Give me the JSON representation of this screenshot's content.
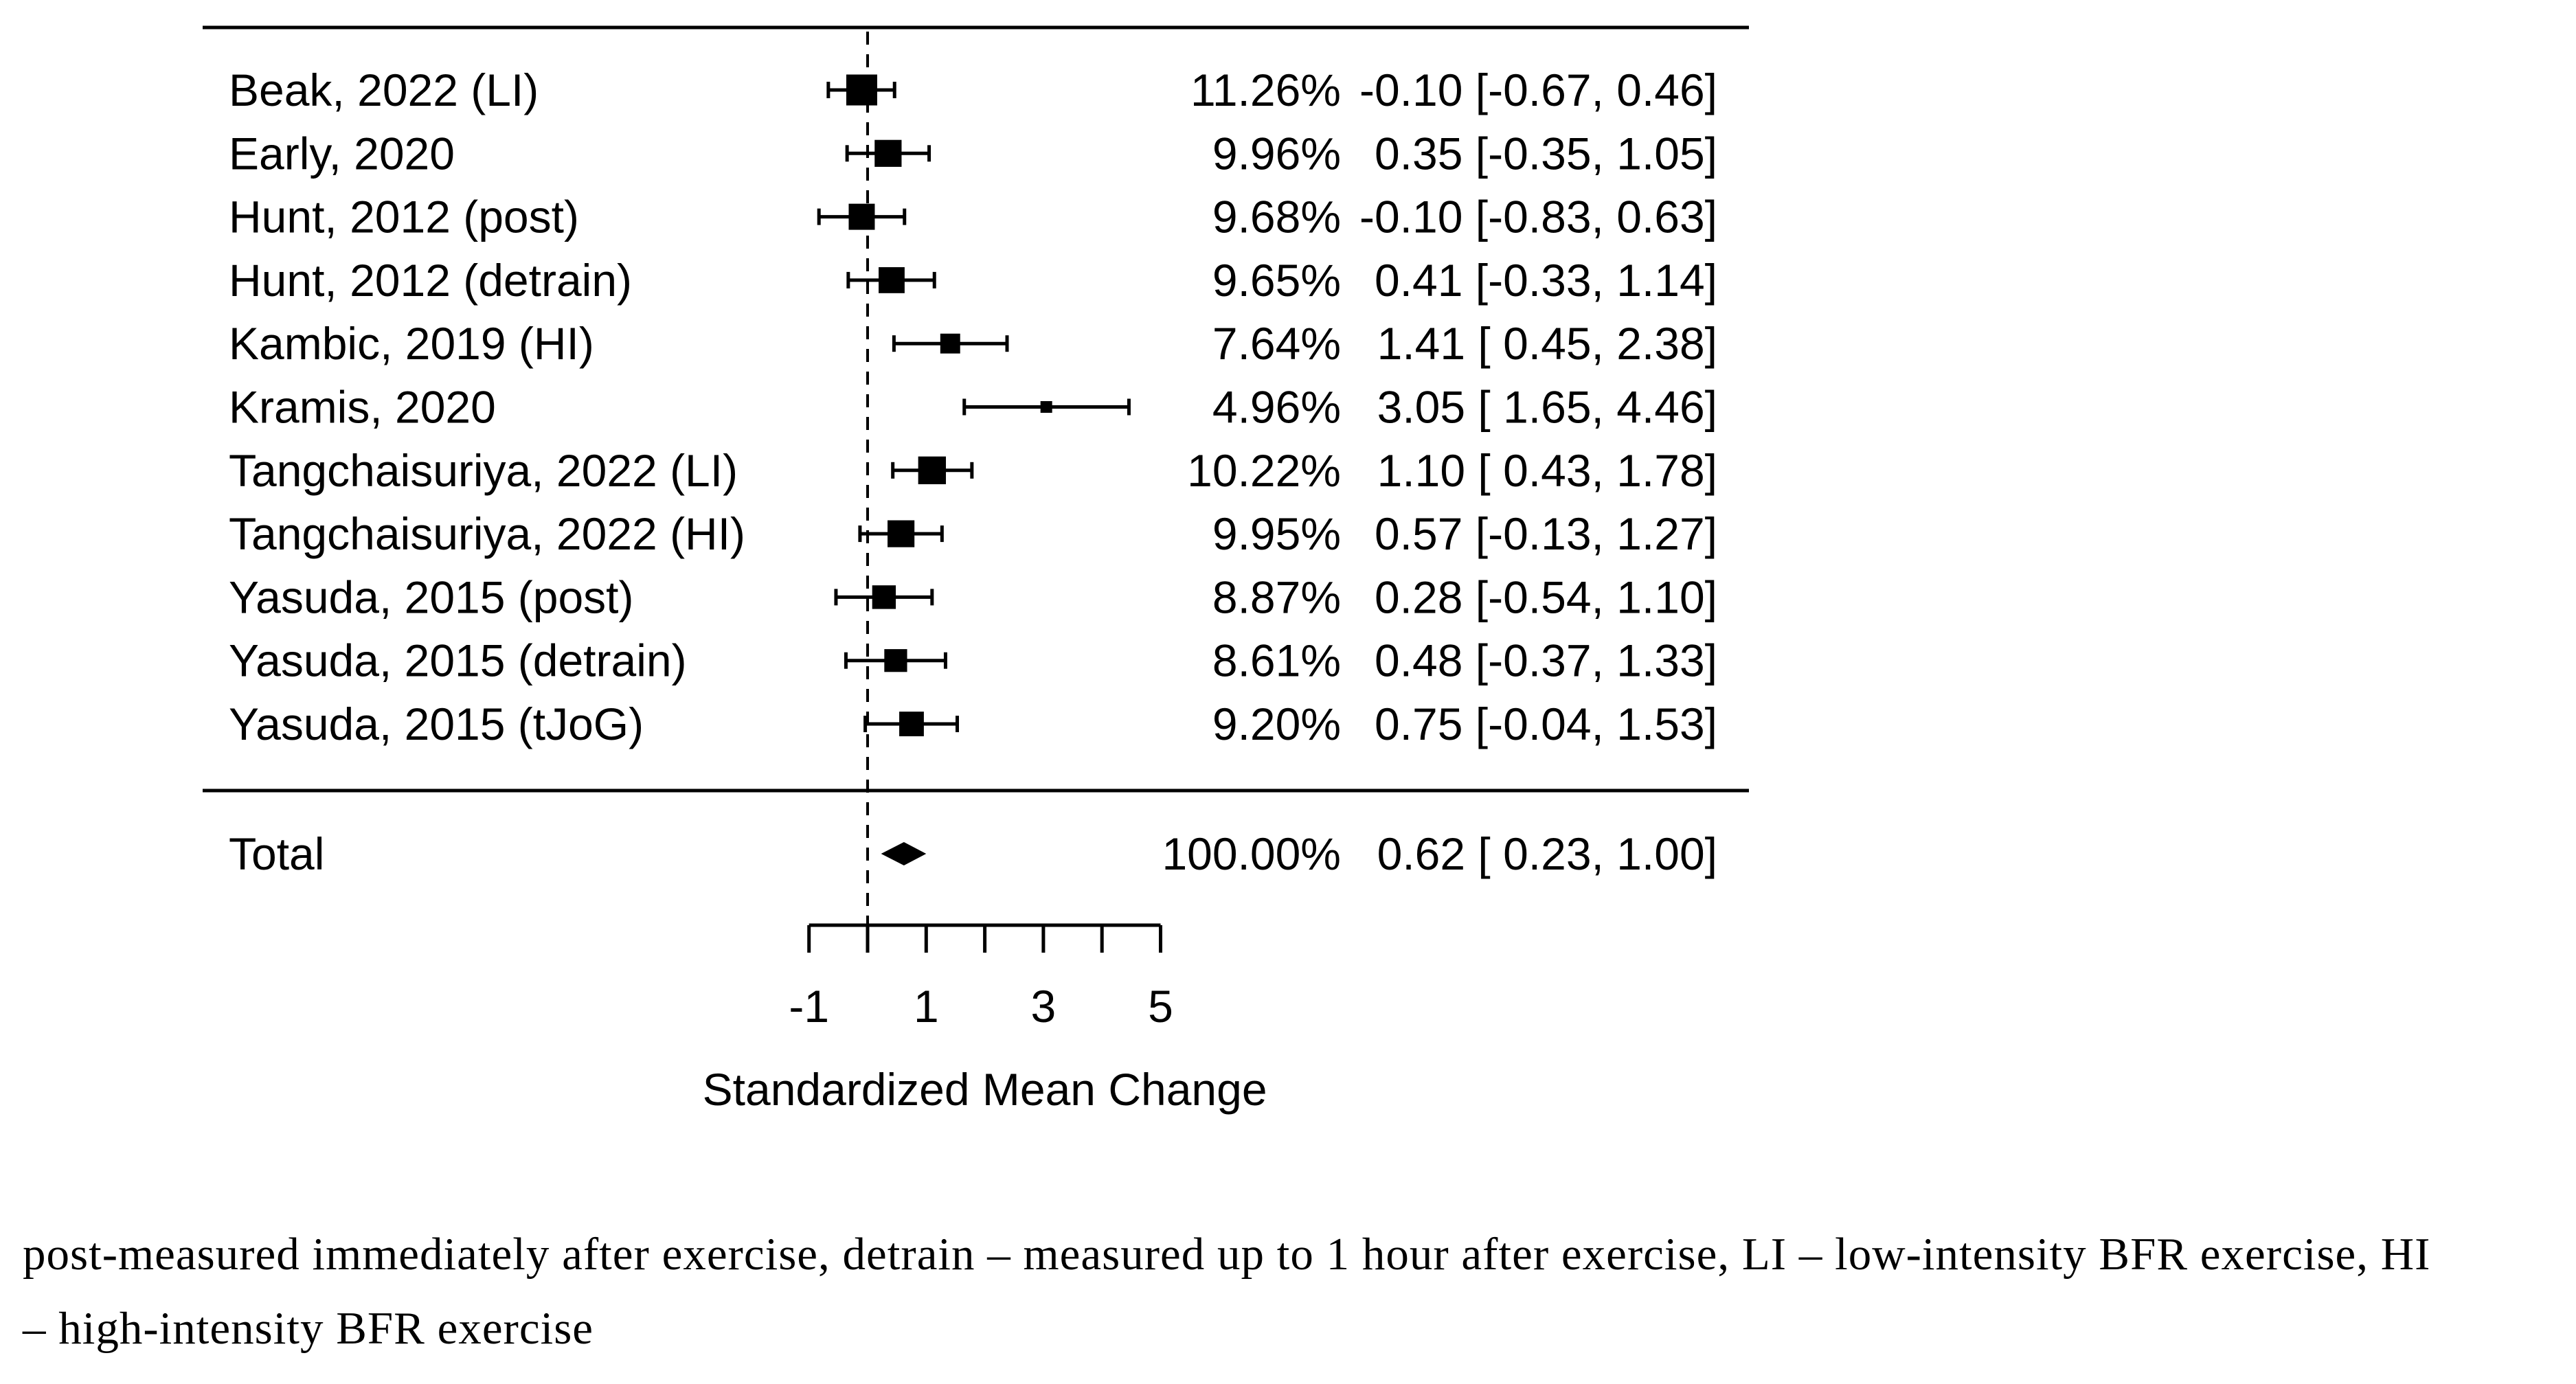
{
  "colors": {
    "ink": "#000000",
    "background": "#ffffff"
  },
  "chart_data": {
    "type": "forest",
    "title": "",
    "xlabel": "Standardized Mean Change",
    "xlim": [
      -1,
      5
    ],
    "x_ticks": [
      -1,
      0,
      1,
      2,
      3,
      4,
      5
    ],
    "x_tick_labels": [
      {
        "value": -1,
        "label": "-1"
      },
      {
        "value": 1,
        "label": "1"
      },
      {
        "value": 3,
        "label": "3"
      },
      {
        "value": 5,
        "label": "5"
      }
    ],
    "zero_line": 0,
    "studies": [
      {
        "label": "Beak, 2022 (LI)",
        "weight_pct": 11.26,
        "weight_label": "11.26%",
        "estimate": -0.1,
        "ci_low": -0.67,
        "ci_high": 0.46,
        "estimate_label": "-0.10 [-0.67, 0.46]"
      },
      {
        "label": "Early, 2020",
        "weight_pct": 9.96,
        "weight_label": "9.96%",
        "estimate": 0.35,
        "ci_low": -0.35,
        "ci_high": 1.05,
        "estimate_label": "0.35 [-0.35, 1.05]"
      },
      {
        "label": "Hunt, 2012 (post)",
        "weight_pct": 9.68,
        "weight_label": "9.68%",
        "estimate": -0.1,
        "ci_low": -0.83,
        "ci_high": 0.63,
        "estimate_label": "-0.10 [-0.83, 0.63]"
      },
      {
        "label": "Hunt, 2012 (detrain)",
        "weight_pct": 9.65,
        "weight_label": "9.65%",
        "estimate": 0.41,
        "ci_low": -0.33,
        "ci_high": 1.14,
        "estimate_label": "0.41 [-0.33, 1.14]"
      },
      {
        "label": "Kambic, 2019 (HI)",
        "weight_pct": 7.64,
        "weight_label": "7.64%",
        "estimate": 1.41,
        "ci_low": 0.45,
        "ci_high": 2.38,
        "estimate_label": "1.41 [ 0.45, 2.38]"
      },
      {
        "label": "Kramis, 2020",
        "weight_pct": 4.96,
        "weight_label": "4.96%",
        "estimate": 3.05,
        "ci_low": 1.65,
        "ci_high": 4.46,
        "estimate_label": "3.05 [ 1.65, 4.46]"
      },
      {
        "label": "Tangchaisuriya, 2022 (LI)",
        "weight_pct": 10.22,
        "weight_label": "10.22%",
        "estimate": 1.1,
        "ci_low": 0.43,
        "ci_high": 1.78,
        "estimate_label": "1.10 [ 0.43, 1.78]"
      },
      {
        "label": "Tangchaisuriya, 2022 (HI)",
        "weight_pct": 9.95,
        "weight_label": "9.95%",
        "estimate": 0.57,
        "ci_low": -0.13,
        "ci_high": 1.27,
        "estimate_label": "0.57 [-0.13, 1.27]"
      },
      {
        "label": "Yasuda, 2015 (post)",
        "weight_pct": 8.87,
        "weight_label": "8.87%",
        "estimate": 0.28,
        "ci_low": -0.54,
        "ci_high": 1.1,
        "estimate_label": "0.28 [-0.54, 1.10]"
      },
      {
        "label": "Yasuda, 2015 (detrain)",
        "weight_pct": 8.61,
        "weight_label": "8.61%",
        "estimate": 0.48,
        "ci_low": -0.37,
        "ci_high": 1.33,
        "estimate_label": "0.48 [-0.37, 1.33]"
      },
      {
        "label": "Yasuda, 2015 (tJoG)",
        "weight_pct": 9.2,
        "weight_label": "9.20%",
        "estimate": 0.75,
        "ci_low": -0.04,
        "ci_high": 1.53,
        "estimate_label": "0.75 [-0.04, 1.53]"
      }
    ],
    "total": {
      "label": "Total",
      "weight_pct": 100.0,
      "weight_label": "100.00%",
      "estimate": 0.62,
      "ci_low": 0.23,
      "ci_high": 1.0,
      "estimate_label": "0.62 [ 0.23, 1.00]"
    }
  },
  "caption": {
    "lines": [
      "post-measured immediately after exercise, detrain – measured up to 1 hour after exercise, LI – low-intensity BFR exercise, HI",
      "– high-intensity BFR exercise"
    ]
  }
}
